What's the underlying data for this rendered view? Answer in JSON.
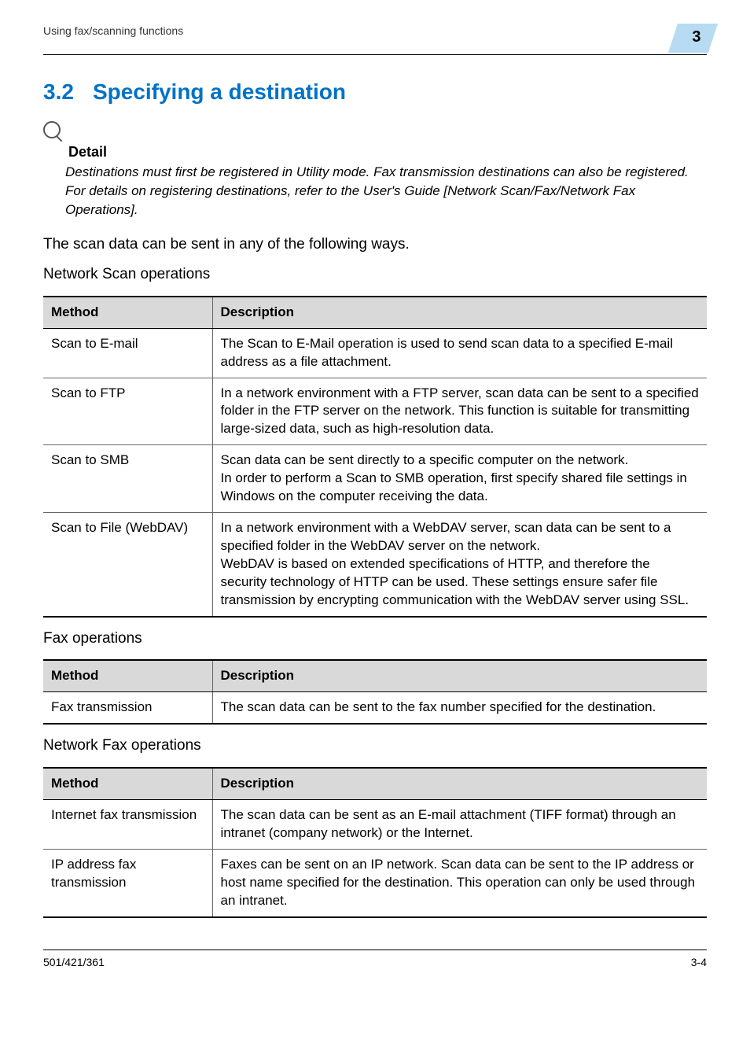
{
  "header": {
    "running_title": "Using fax/scanning functions",
    "page_chip": "3"
  },
  "section": {
    "number": "3.2",
    "title": "Specifying a destination"
  },
  "detail": {
    "heading": "Detail",
    "text": "Destinations must first be registered in Utility mode. Fax transmission destinations can also be registered. For details on registering destinations, refer to the User's Guide [Network Scan/Fax/Network Fax Operations]."
  },
  "intro": "The scan data can be sent in any of the following ways.",
  "tables": {
    "col_method": "Method",
    "col_description": "Description",
    "network_scan": {
      "title": "Network Scan operations",
      "rows": [
        {
          "method": "Scan to E-mail",
          "desc": "The Scan to E-Mail operation is used to send scan data to a specified E-mail address as a file attachment."
        },
        {
          "method": "Scan to FTP",
          "desc": "In a network environment with a FTP server, scan data can be sent to a specified folder in the FTP server on the network. This function is suitable for transmitting large-sized data, such as high-resolution data."
        },
        {
          "method": "Scan to SMB",
          "desc": "Scan data can be sent directly to a specific computer on the network.\nIn order to perform a Scan to SMB operation, first specify shared file settings in Windows on the computer receiving the data."
        },
        {
          "method": "Scan to File (WebDAV)",
          "desc": "In a network environment with a WebDAV server, scan data can be sent to a specified folder in the WebDAV server on the network.\nWebDAV is based on extended specifications of HTTP, and therefore the security technology of HTTP can be used. These settings ensure safer file transmission by encrypting communication with the WebDAV server using SSL."
        }
      ]
    },
    "fax": {
      "title": "Fax operations",
      "rows": [
        {
          "method": "Fax transmission",
          "desc": "The scan data can be sent to the fax number specified for the destination."
        }
      ]
    },
    "network_fax": {
      "title": "Network Fax operations",
      "rows": [
        {
          "method": "Internet fax transmission",
          "desc": "The scan data can be sent as an E-mail attachment (TIFF format) through an intranet (company network) or the Internet."
        },
        {
          "method": "IP address fax transmission",
          "desc": "Faxes can be sent on an IP network. Scan data can be sent to the IP address or host name specified for the destination. This operation can only be used through an intranet."
        }
      ]
    }
  },
  "footer": {
    "left": "501/421/361",
    "right": "3-4"
  },
  "colors": {
    "accent_blue": "#0072c6",
    "chip_bg": "#b6dbf2",
    "th_bg": "#d9d9d9"
  }
}
